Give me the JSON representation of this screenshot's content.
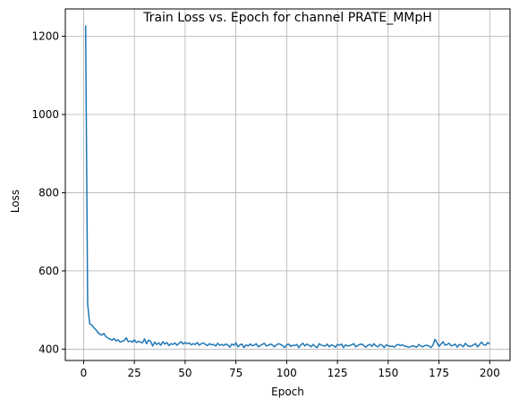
{
  "chart_data": {
    "type": "line",
    "title": "Train Loss vs. Epoch for channel PRATE_MMpH",
    "xlabel": "Epoch",
    "ylabel": "Loss",
    "xlim": [
      -9,
      210
    ],
    "ylim": [
      371,
      1270
    ],
    "xticks": [
      0,
      25,
      50,
      75,
      100,
      125,
      150,
      175,
      200
    ],
    "yticks": [
      400,
      600,
      800,
      1000,
      1200
    ],
    "grid": true,
    "legend": "none",
    "colors": {
      "line": "#1f77b4",
      "grid": "#b0b0b0",
      "axis": "#000000",
      "background": "#ffffff"
    },
    "series": [
      {
        "x": [
          1,
          2,
          3,
          4,
          5,
          6,
          7,
          8,
          9,
          10,
          11,
          12,
          13,
          14,
          15,
          16,
          17,
          18,
          19,
          20,
          21,
          22,
          23,
          24,
          25,
          26,
          27,
          28,
          29,
          30,
          31,
          32,
          33,
          34,
          35,
          36,
          37,
          38,
          39,
          40,
          41,
          42,
          43,
          44,
          45,
          46,
          47,
          48,
          49,
          50,
          51,
          52,
          53,
          54,
          55,
          56,
          57,
          58,
          59,
          60,
          61,
          62,
          63,
          64,
          65,
          66,
          67,
          68,
          69,
          70,
          71,
          72,
          73,
          74,
          75,
          76,
          77,
          78,
          79,
          80,
          81,
          82,
          83,
          84,
          85,
          86,
          87,
          88,
          89,
          90,
          91,
          92,
          93,
          94,
          95,
          96,
          97,
          98,
          99,
          100,
          101,
          102,
          103,
          104,
          105,
          106,
          107,
          108,
          109,
          110,
          111,
          112,
          113,
          114,
          115,
          116,
          117,
          118,
          119,
          120,
          121,
          122,
          123,
          124,
          125,
          126,
          127,
          128,
          129,
          130,
          131,
          132,
          133,
          134,
          135,
          136,
          137,
          138,
          139,
          140,
          141,
          142,
          143,
          144,
          145,
          146,
          147,
          148,
          149,
          150,
          151,
          152,
          153,
          154,
          155,
          156,
          157,
          158,
          159,
          160,
          161,
          162,
          163,
          164,
          165,
          166,
          167,
          168,
          169,
          170,
          171,
          172,
          173,
          174,
          175,
          176,
          177,
          178,
          179,
          180,
          181,
          182,
          183,
          184,
          185,
          186,
          187,
          188,
          189,
          190,
          191,
          192,
          193,
          194,
          195,
          196,
          197,
          198,
          199,
          200
        ],
        "values": [
          1228,
          515,
          465,
          462,
          455,
          450,
          443,
          438,
          436,
          440,
          432,
          428,
          426,
          423,
          427,
          421,
          424,
          418,
          420,
          422,
          429,
          419,
          421,
          418,
          424,
          417,
          420,
          418,
          416,
          426,
          414,
          423,
          420,
          408,
          418,
          412,
          416,
          410,
          419,
          413,
          417,
          409,
          414,
          412,
          416,
          410,
          415,
          419,
          413,
          417,
          414,
          416,
          411,
          414,
          412,
          417,
          410,
          414,
          416,
          412,
          409,
          414,
          411,
          412,
          408,
          415,
          410,
          412,
          409,
          413,
          411,
          405,
          413,
          410,
          416,
          406,
          411,
          413,
          404,
          411,
          408,
          413,
          409,
          410,
          414,
          406,
          409,
          412,
          415,
          408,
          410,
          413,
          411,
          406,
          411,
          414,
          412,
          409,
          404,
          411,
          413,
          407,
          410,
          409,
          412,
          404,
          411,
          415,
          408,
          413,
          410,
          406,
          412,
          407,
          404,
          414,
          410,
          409,
          408,
          413,
          406,
          411,
          409,
          405,
          412,
          410,
          413,
          404,
          411,
          408,
          409,
          411,
          414,
          406,
          409,
          412,
          413,
          409,
          405,
          410,
          412,
          407,
          414,
          408,
          406,
          412,
          410,
          404,
          411,
          409,
          407,
          408,
          405,
          410,
          412,
          409,
          411,
          408,
          407,
          405,
          406,
          409,
          407,
          405,
          412,
          408,
          406,
          409,
          410,
          408,
          404,
          410,
          425,
          417,
          407,
          413,
          419,
          410,
          412,
          415,
          408,
          410,
          413,
          405,
          412,
          410,
          406,
          415,
          409,
          407,
          408,
          411,
          414,
          406,
          412,
          418,
          411,
          410,
          417,
          413
        ]
      }
    ]
  }
}
